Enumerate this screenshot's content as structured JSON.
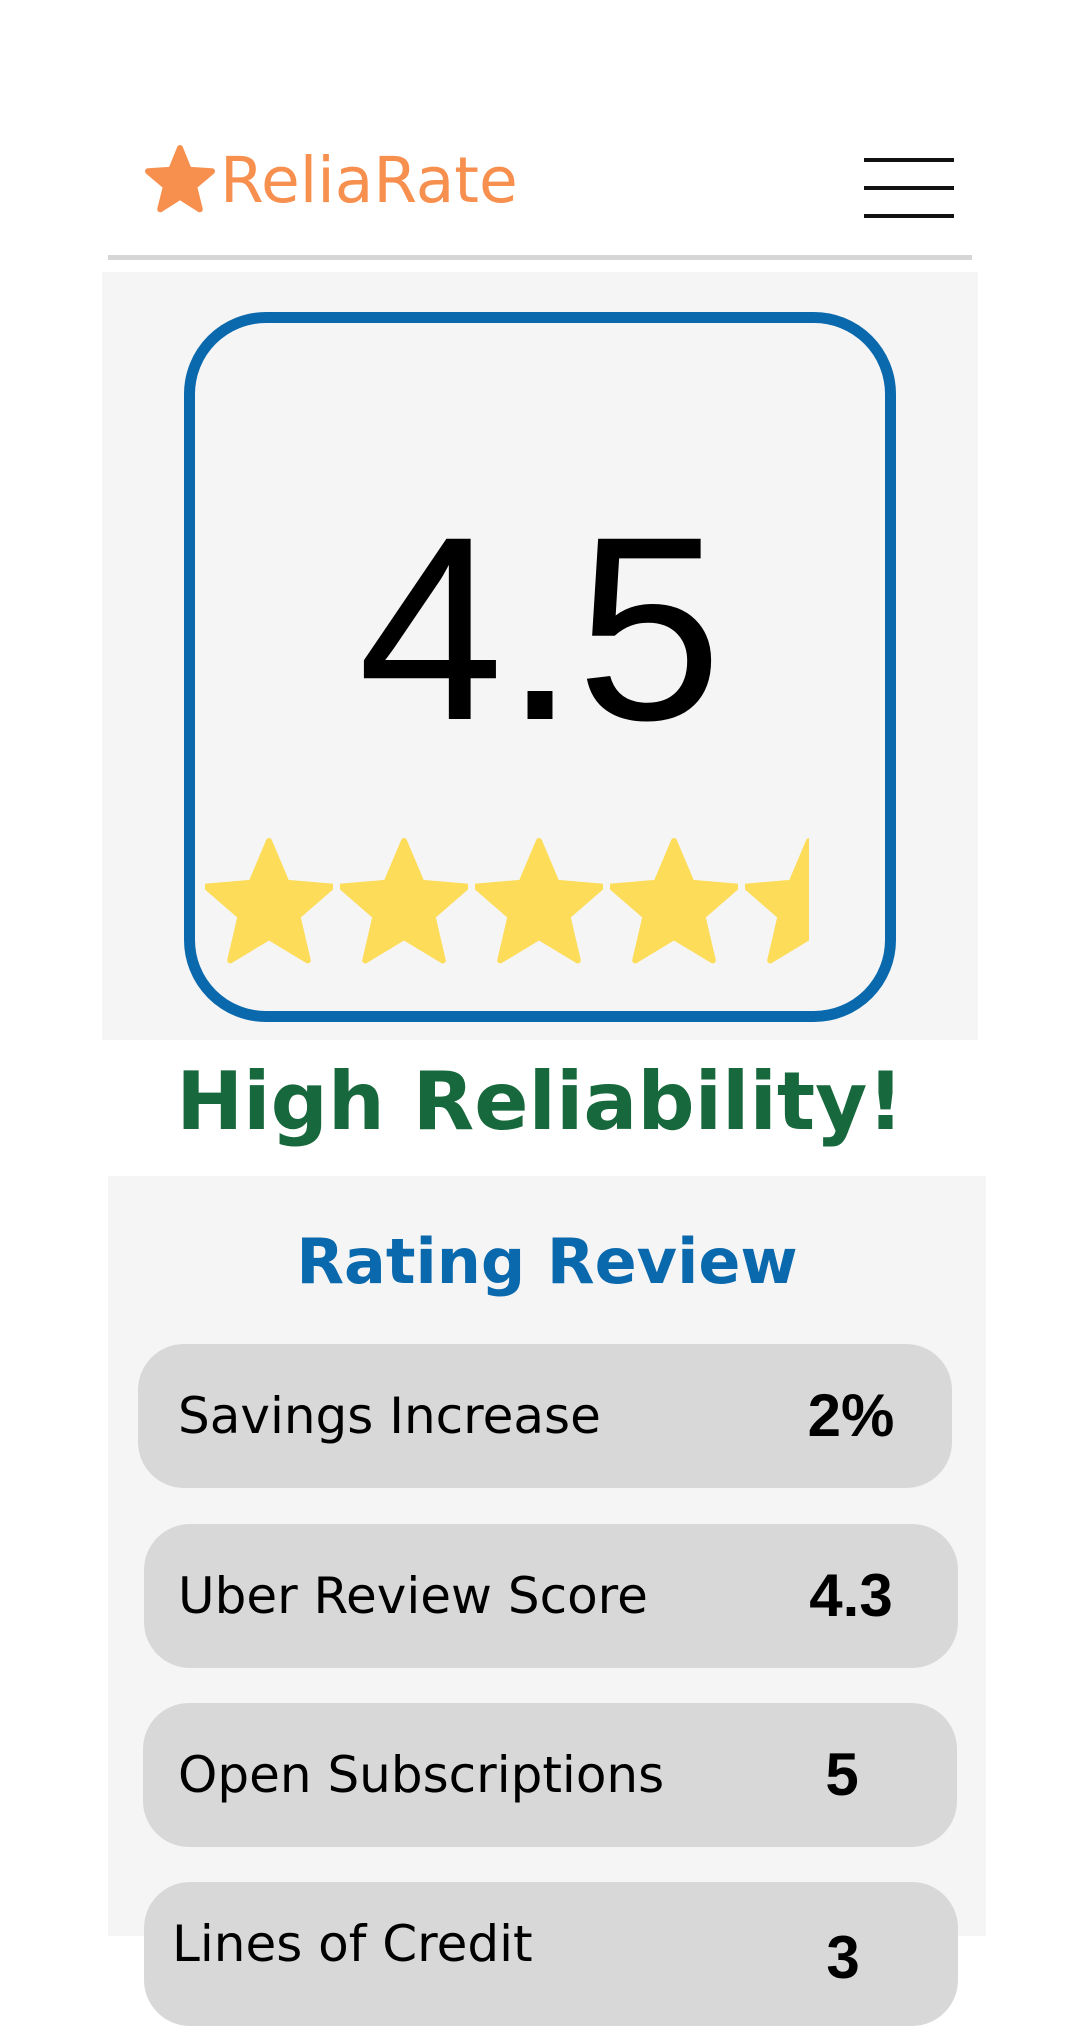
{
  "brand": {
    "name": "ReliaRate",
    "icon": "star-icon",
    "color": "#f7904f"
  },
  "menu": {
    "icon": "hamburger-menu-icon"
  },
  "score": {
    "value": "4.5",
    "rating": 4.5,
    "max_rating": 5,
    "star_color": "#fcdc58",
    "border_color": "#0a69ad"
  },
  "reliability": {
    "label": "High Reliability!",
    "color": "#17683c"
  },
  "review": {
    "title": "Rating Review",
    "title_color": "#0a69ad",
    "metrics": [
      {
        "label": "Savings Increase",
        "value": "2%"
      },
      {
        "label": "Uber Review Score",
        "value": "4.3"
      },
      {
        "label": "Open Subscriptions",
        "value": "5"
      },
      {
        "label": "Lines of Credit",
        "value": "3"
      }
    ]
  }
}
